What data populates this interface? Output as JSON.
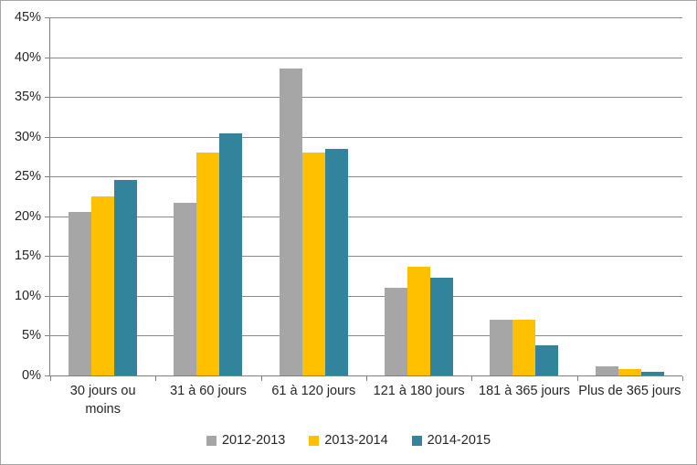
{
  "chart_data": {
    "type": "bar",
    "title": "",
    "xlabel": "",
    "ylabel": "",
    "categories": [
      "30 jours ou\nmoins",
      "31 à 60 jours",
      "61 à 120 jours",
      "121 à 180 jours",
      "181 à 365 jours",
      "Plus de 365 jours"
    ],
    "series": [
      {
        "name": "2012-2013",
        "color": "#a6a6a6",
        "values": [
          20.6,
          21.7,
          38.6,
          11.0,
          7.0,
          1.2
        ]
      },
      {
        "name": "2013-2014",
        "color": "#ffc000",
        "values": [
          22.5,
          28.0,
          28.0,
          13.7,
          7.0,
          0.8
        ]
      },
      {
        "name": "2014-2015",
        "color": "#31849b",
        "values": [
          24.6,
          30.4,
          28.5,
          12.3,
          3.8,
          0.5
        ]
      }
    ],
    "y_axis": {
      "min": 0,
      "max": 45,
      "step": 5,
      "tick_labels": [
        "0%",
        "5%",
        "10%",
        "15%",
        "20%",
        "25%",
        "30%",
        "35%",
        "40%",
        "45%"
      ]
    },
    "grid": true,
    "legend_position": "bottom",
    "colors": {
      "axis_line": "#808080",
      "gridline": "#8a8a8a",
      "text": "#262626",
      "chart_border": "#a6a6a6",
      "background": "#ffffff"
    }
  }
}
